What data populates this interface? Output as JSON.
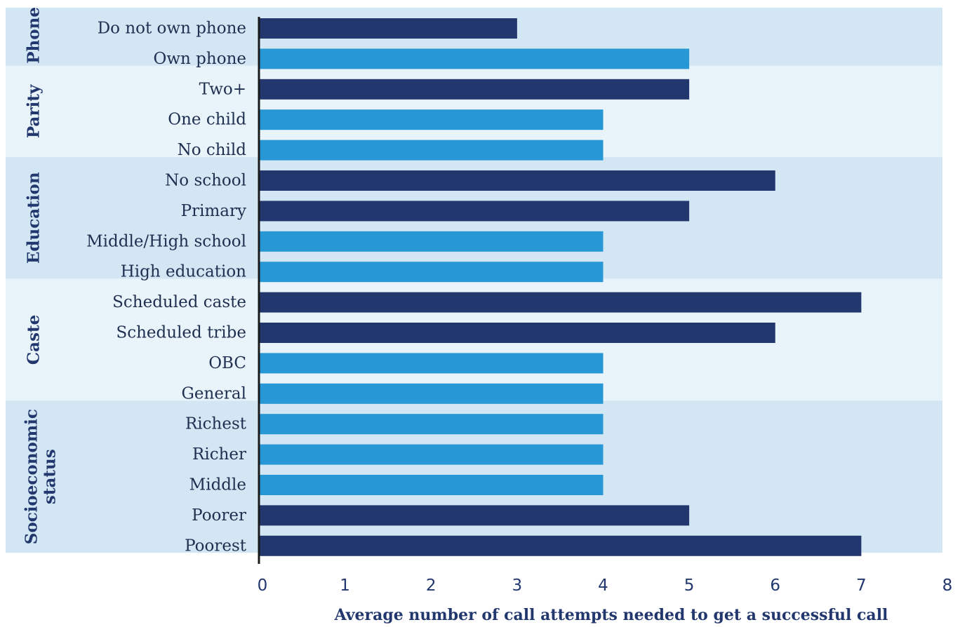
{
  "chart_data": {
    "type": "bar",
    "orientation": "horizontal",
    "xlabel": "Average number of call attempts needed to get a successful call",
    "xlim": [
      0,
      8
    ],
    "xticks": [
      "0",
      "1",
      "2",
      "3",
      "4",
      "5",
      "6",
      "7",
      "8"
    ],
    "groups": [
      {
        "name": [
          "Phone"
        ],
        "band_color": "#d3e6f4",
        "items": [
          {
            "label": "Do not own phone",
            "value": 3,
            "color": "#22376d"
          },
          {
            "label": "Own phone",
            "value": 5,
            "color": "#2797d5"
          }
        ]
      },
      {
        "name": [
          "Parity"
        ],
        "band_color": "#e8f3fa",
        "items": [
          {
            "label": "Two+",
            "value": 5,
            "color": "#22376d"
          },
          {
            "label": "One child",
            "value": 4,
            "color": "#2797d5"
          },
          {
            "label": "No child",
            "value": 4,
            "color": "#2797d5"
          }
        ]
      },
      {
        "name": [
          "Education"
        ],
        "band_color": "#d3e6f4",
        "items": [
          {
            "label": "No school",
            "value": 6,
            "color": "#22376d"
          },
          {
            "label": "Primary",
            "value": 5,
            "color": "#22376d"
          },
          {
            "label": "Middle/High school",
            "value": 4,
            "color": "#2797d5"
          },
          {
            "label": "High education",
            "value": 4,
            "color": "#2797d5"
          }
        ]
      },
      {
        "name": [
          "Caste"
        ],
        "band_color": "#e8f3fa",
        "items": [
          {
            "label": "Scheduled caste",
            "value": 7,
            "color": "#22376d"
          },
          {
            "label": "Scheduled tribe",
            "value": 6,
            "color": "#22376d"
          },
          {
            "label": "OBC",
            "value": 4,
            "color": "#2797d5"
          },
          {
            "label": "General",
            "value": 4,
            "color": "#2797d5"
          }
        ]
      },
      {
        "name": [
          "Socioeconomic",
          "status"
        ],
        "band_color": "#d3e6f4",
        "items": [
          {
            "label": "Richest",
            "value": 4,
            "color": "#2797d5"
          },
          {
            "label": "Richer",
            "value": 4,
            "color": "#2797d5"
          },
          {
            "label": "Middle",
            "value": 4,
            "color": "#2797d5"
          },
          {
            "label": "Poorer",
            "value": 5,
            "color": "#22376d"
          },
          {
            "label": "Poorest",
            "value": 7,
            "color": "#22376d"
          }
        ]
      }
    ]
  }
}
